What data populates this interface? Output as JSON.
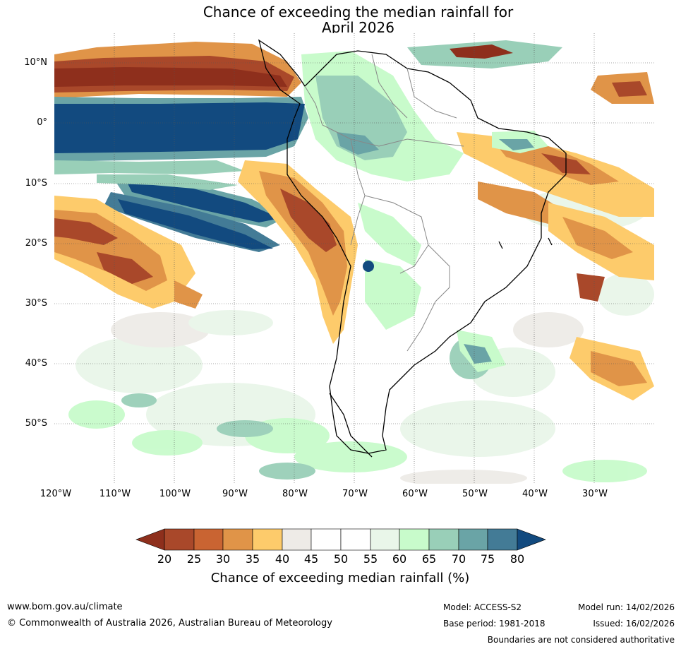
{
  "title": {
    "line1": "Chance of exceeding the median rainfall for",
    "line2": "April 2026"
  },
  "map": {
    "lat_labels": [
      "10°N",
      "0°",
      "10°S",
      "20°S",
      "30°S",
      "40°S",
      "50°S"
    ],
    "lon_labels": [
      "120°W",
      "110°W",
      "100°W",
      "90°W",
      "80°W",
      "70°W",
      "60°W",
      "50°W",
      "40°W",
      "30°W"
    ]
  },
  "colorbar": {
    "title": "Chance of exceeding median rainfall (%)",
    "ticks": [
      "20",
      "25",
      "30",
      "35",
      "40",
      "45",
      "50",
      "55",
      "60",
      "65",
      "70",
      "75",
      "80"
    ],
    "colors": {
      "below20": "#8e2f1c",
      "c20_25": "#a9482a",
      "c25_30": "#c96432",
      "c30_35": "#e09448",
      "c35_40": "#fdcb6b",
      "c40_45": "#eeebe7",
      "c45_50": "#ffffff",
      "c50_55": "#ffffff",
      "c55_60": "#e9f6e9",
      "c60_65": "#c8fbcb",
      "c65_70": "#99cfb8",
      "c70_75": "#6aa4a6",
      "c75_80": "#437b96",
      "above80": "#124a7f"
    }
  },
  "footer": {
    "url": "www.bom.gov.au/climate",
    "copyright": "© Commonwealth of Australia 2026, Australian Bureau of Meteorology",
    "model": "Model: ACCESS-S2",
    "base_period": "Base period: 1981-2018",
    "model_run": "Model run: 14/02/2026",
    "issued": "Issued: 16/02/2026",
    "disclaimer": "Boundaries are not considered authoritative"
  }
}
